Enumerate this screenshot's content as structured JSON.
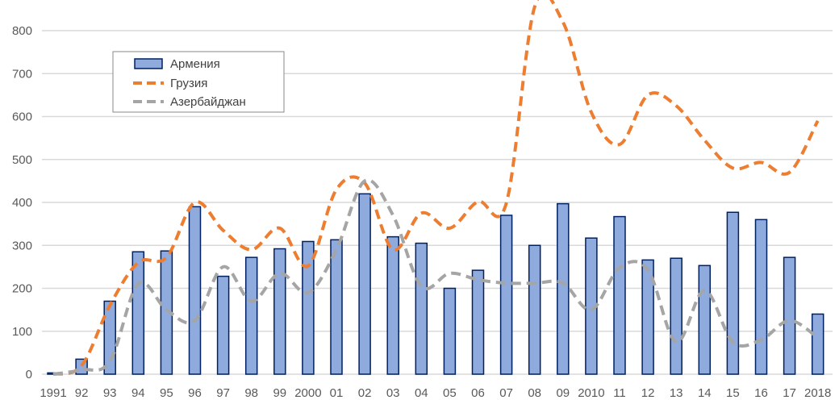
{
  "chart_data": {
    "type": "bar+line",
    "title": "",
    "xlabel": "",
    "ylabel": "",
    "ylim": [
      0,
      850
    ],
    "yticks": [
      0,
      100,
      200,
      300,
      400,
      500,
      600,
      700,
      800
    ],
    "grid": true,
    "legend_position": "top-left",
    "categories": [
      "1991",
      "92",
      "93",
      "94",
      "95",
      "96",
      "97",
      "98",
      "99",
      "2000",
      "01",
      "02",
      "03",
      "04",
      "05",
      "06",
      "07",
      "08",
      "09",
      "2010",
      "11",
      "12",
      "13",
      "14",
      "15",
      "16",
      "17",
      "2018"
    ],
    "series": [
      {
        "name": "Армения",
        "kind": "bar",
        "color": "#8faadc",
        "edge": "#002060",
        "values": [
          3,
          35,
          170,
          285,
          287,
          390,
          228,
          272,
          292,
          309,
          313,
          420,
          320,
          305,
          200,
          242,
          370,
          300,
          397,
          317,
          367,
          266,
          270,
          253,
          377,
          360,
          272,
          140
        ]
      },
      {
        "name": "Грузия",
        "kind": "line",
        "style": "dashed-smooth",
        "color": "#ed7d31",
        "values": [
          0,
          20,
          160,
          260,
          272,
          400,
          335,
          290,
          340,
          252,
          430,
          445,
          290,
          375,
          340,
          402,
          398,
          855,
          820,
          610,
          535,
          650,
          625,
          545,
          480,
          493,
          470,
          590
        ]
      },
      {
        "name": "Азербайджан",
        "kind": "line",
        "style": "dashed-smooth",
        "color": "#a5a5a5",
        "values": [
          0,
          10,
          30,
          210,
          150,
          125,
          250,
          170,
          235,
          190,
          290,
          450,
          370,
          205,
          235,
          220,
          212,
          212,
          212,
          150,
          248,
          243,
          75,
          195,
          75,
          80,
          125,
          85
        ]
      }
    ]
  }
}
